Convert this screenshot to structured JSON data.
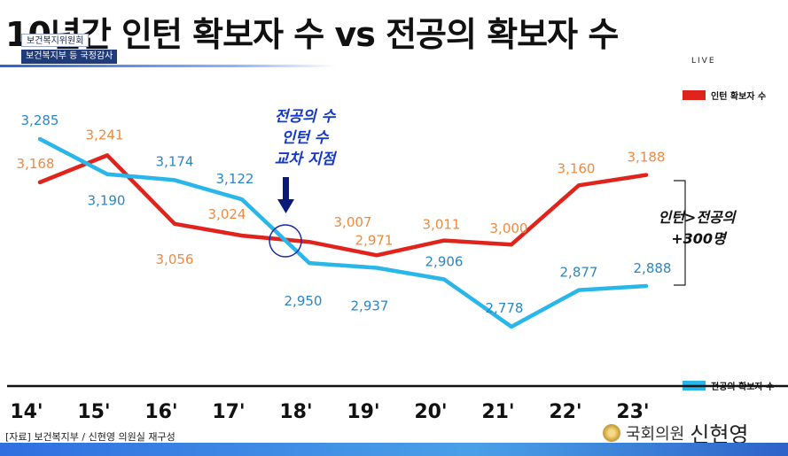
{
  "header": {
    "title": "10년간 인턴 확보자 수 vs 전공의 확보자 수",
    "committee": "보건복지위원회",
    "session": "보건복지부 등 국정감사",
    "live": "LIVE"
  },
  "chart_data": {
    "type": "line",
    "categories": [
      "14'",
      "15'",
      "16'",
      "17'",
      "18'",
      "19'",
      "20'",
      "21'",
      "22'",
      "23'"
    ],
    "series": [
      {
        "name": "인턴 확보자 수",
        "color": "#e0231c",
        "label_color": "#ef8a3f",
        "values": [
          3168,
          3241,
          3056,
          3024,
          3007,
          2971,
          3011,
          3000,
          3160,
          3188
        ],
        "labels": [
          "3,168",
          "3,241",
          "3,056",
          "3,024",
          "3,007",
          "2,971",
          "3,011",
          "3,000",
          "3,160",
          "3,188"
        ]
      },
      {
        "name": "전공의 확보자 수",
        "color": "#29b6ea",
        "label_color": "#2c86c6",
        "values": [
          3285,
          3190,
          3174,
          3122,
          2950,
          2937,
          2906,
          2778,
          2877,
          2888
        ],
        "labels": [
          "3,285",
          "3,190",
          "3,174",
          "3,122",
          "2,950",
          "2,937",
          "2,906",
          "2,778",
          "2,877",
          "2,888"
        ]
      }
    ],
    "legend": "right",
    "grid": false,
    "annotations": {
      "crossover": [
        "전공의 수",
        "인턴 수",
        "교차 지점"
      ],
      "gap": [
        "인턴>전공의",
        "+300명"
      ]
    }
  },
  "footer": {
    "source": "[자료] 보건복지부 / 신현영 의원실 재구성",
    "org": "국회의원",
    "name": "신현영"
  }
}
